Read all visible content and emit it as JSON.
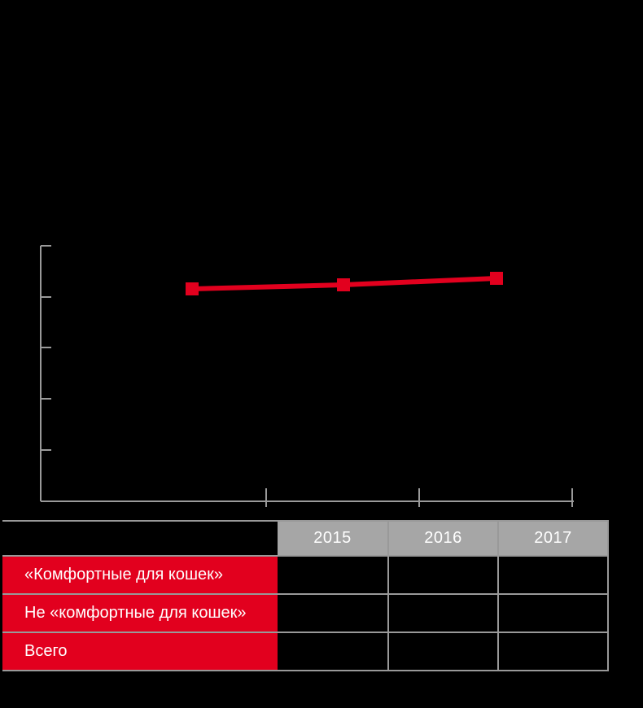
{
  "colors": {
    "background": "#000000",
    "accent_red": "#e2001e",
    "header_gray": "#a6a6a6",
    "grid_line": "#999999",
    "axis_gray": "#9a9a9a",
    "text_white": "#ffffff"
  },
  "chart_data": {
    "type": "line",
    "title": "",
    "xlabel": "",
    "ylabel": "",
    "categories": [
      "2015",
      "2016",
      "2017"
    ],
    "series": [
      {
        "name": "«Комфортные для кошек»",
        "color": "#e2001e",
        "marker": "square",
        "values": [
          null,
          null,
          null
        ]
      }
    ],
    "legend": "none",
    "grid": "off",
    "note": "Axis tick labels, title and data values are not visible (rendered black on black); only a slightly rising red line with 3 square markers is visible."
  },
  "chart_render": {
    "axis_color": "#9a9a9a",
    "axis_stroke": 2,
    "y_axis": {
      "x": 50,
      "top": 302,
      "tick_len": 13,
      "ticks": [
        302,
        365,
        427,
        490,
        553
      ]
    },
    "x_axis": {
      "y": 616,
      "left": 50,
      "right": 705,
      "tick_top": 600,
      "tick_bottom": 623,
      "ticks": [
        327,
        515,
        703
      ]
    },
    "points": [
      [
        236,
        355
      ],
      [
        422,
        350
      ],
      [
        610,
        342
      ]
    ],
    "line_width": 6,
    "marker_size": 16
  },
  "table": {
    "header": {
      "corner": "",
      "cols": [
        "2015",
        "2016",
        "2017"
      ]
    },
    "rows": [
      {
        "label": "«Комфортные для кошек»",
        "cells": [
          "",
          "",
          ""
        ]
      },
      {
        "label": "Не «комфортные для кошек»",
        "cells": [
          "",
          "",
          ""
        ]
      },
      {
        "label": "Всего",
        "cells": [
          "",
          "",
          ""
        ]
      }
    ]
  }
}
